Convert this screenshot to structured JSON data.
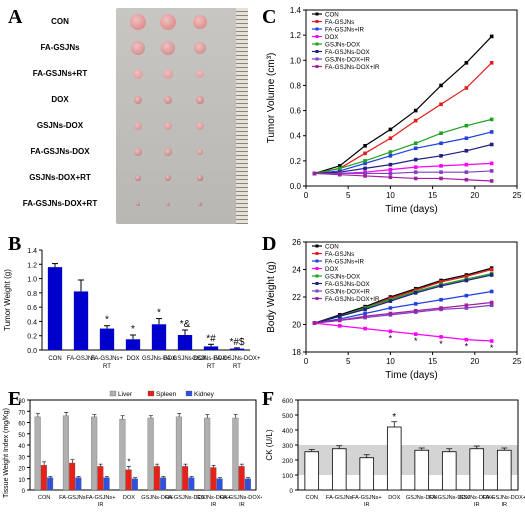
{
  "panel_letters": {
    "a": "A",
    "b": "B",
    "c": "C",
    "d": "D",
    "e": "E",
    "f": "F"
  },
  "photo": {
    "rows": [
      "CON",
      "FA-GSJNs",
      "FA-GSJNs+RT",
      "DOX",
      "GSJNs-DOX",
      "FA-GSJNs-DOX",
      "GSJNs-DOX+RT",
      "FA-GSJNs-DOX+RT"
    ],
    "tumor_colors": [
      "#d97a7a",
      "#c98080",
      "#d89090",
      "#b87070",
      "#c48888",
      "#b87878",
      "#a06868",
      "#906060"
    ],
    "tumor_sizes": [
      1.0,
      0.85,
      0.6,
      0.5,
      0.55,
      0.45,
      0.35,
      0.25
    ]
  },
  "chart_data": [
    {
      "id": "B",
      "type": "bar",
      "ylabel": "Tumor Weight (g)",
      "categories": [
        "CON",
        "FA-GSJNs",
        "FA-GSJNs+RT",
        "DOX",
        "GSJNs-DOX",
        "FA-GSJNs-DOX",
        "GSJNs-DOX+RT",
        "FA-GSJNs-DOX+RT"
      ],
      "values": [
        1.16,
        0.82,
        0.3,
        0.15,
        0.36,
        0.21,
        0.05,
        0.02
      ],
      "errors": [
        0.05,
        0.16,
        0.04,
        0.06,
        0.08,
        0.07,
        0.03,
        0.01
      ],
      "annotations": [
        "",
        "",
        "*",
        "*",
        "*",
        "*&",
        "*#",
        "*#$"
      ],
      "ylim": [
        0.0,
        1.4
      ],
      "yticks": [
        "0.0",
        "0.2",
        "0.4",
        "0.6",
        "0.8",
        "1.0",
        "1.2",
        "1.4"
      ],
      "color": "#0000cc"
    },
    {
      "id": "C",
      "type": "line",
      "xlabel": "Time (days)",
      "ylabel": "Tumor Volume (cm³)",
      "x": [
        1,
        4,
        7,
        10,
        13,
        16,
        19,
        22
      ],
      "xlim": [
        0,
        25
      ],
      "xticks": [
        "0",
        "5",
        "10",
        "15",
        "20",
        "25"
      ],
      "ylim": [
        0,
        1.4
      ],
      "yticks": [
        "0.0",
        "0.2",
        "0.4",
        "0.6",
        "0.8",
        "1.0",
        "1.2",
        "1.4"
      ],
      "legend_position": "top-left",
      "series": [
        {
          "name": "CON",
          "color": "#000000",
          "values": [
            0.1,
            0.16,
            0.32,
            0.45,
            0.6,
            0.8,
            0.98,
            1.19
          ]
        },
        {
          "name": "FA-GSJNs",
          "color": "#e41a1c",
          "values": [
            0.1,
            0.14,
            0.26,
            0.38,
            0.52,
            0.65,
            0.78,
            0.98
          ]
        },
        {
          "name": "FA-GSJNs+IR",
          "color": "#2040e0",
          "values": [
            0.1,
            0.12,
            0.18,
            0.24,
            0.3,
            0.34,
            0.38,
            0.43
          ]
        },
        {
          "name": "DOX",
          "color": "#ff00ff",
          "values": [
            0.1,
            0.1,
            0.11,
            0.13,
            0.15,
            0.16,
            0.17,
            0.18
          ]
        },
        {
          "name": "GSJNs-DOX",
          "color": "#20a020",
          "values": [
            0.1,
            0.14,
            0.2,
            0.27,
            0.34,
            0.42,
            0.48,
            0.53
          ]
        },
        {
          "name": "FA-GSJNs-DOX",
          "color": "#202080",
          "values": [
            0.1,
            0.11,
            0.14,
            0.17,
            0.21,
            0.24,
            0.28,
            0.33
          ]
        },
        {
          "name": "GSJNs-DOX+IR",
          "color": "#8040c0",
          "values": [
            0.1,
            0.1,
            0.1,
            0.1,
            0.11,
            0.11,
            0.11,
            0.12
          ]
        },
        {
          "name": "FA-GSJNs-DOX+IR",
          "color": "#a020a0",
          "values": [
            0.1,
            0.09,
            0.08,
            0.07,
            0.06,
            0.06,
            0.05,
            0.04
          ]
        }
      ]
    },
    {
      "id": "D",
      "type": "line",
      "xlabel": "Time (days)",
      "ylabel": "Body Weight (g)",
      "x": [
        1,
        4,
        7,
        10,
        13,
        16,
        19,
        22
      ],
      "xlim": [
        0,
        25
      ],
      "xticks": [
        "0",
        "5",
        "10",
        "15",
        "20",
        "25"
      ],
      "ylim": [
        18,
        26
      ],
      "yticks": [
        "18",
        "20",
        "22",
        "24",
        "26"
      ],
      "legend_position": "top-left",
      "marker_annotation": "*",
      "annotated_series": "DOX",
      "annotated_points": [
        3,
        4,
        5,
        6,
        7
      ],
      "series": [
        {
          "name": "CON",
          "color": "#000000",
          "values": [
            20.1,
            20.7,
            21.3,
            22.0,
            22.6,
            23.2,
            23.6,
            24.1
          ]
        },
        {
          "name": "FA-GSJNs",
          "color": "#e41a1c",
          "values": [
            20.1,
            20.6,
            21.2,
            21.9,
            22.5,
            23.1,
            23.5,
            24.0
          ]
        },
        {
          "name": "FA-GSJNs+IR",
          "color": "#2040e0",
          "values": [
            20.1,
            20.4,
            20.8,
            21.2,
            21.5,
            21.8,
            22.1,
            22.4
          ]
        },
        {
          "name": "DOX",
          "color": "#ff00ff",
          "values": [
            20.1,
            19.9,
            19.7,
            19.5,
            19.3,
            19.1,
            18.9,
            18.8
          ]
        },
        {
          "name": "GSJNs-DOX",
          "color": "#20a020",
          "values": [
            20.1,
            20.6,
            21.2,
            21.8,
            22.4,
            22.9,
            23.3,
            23.7
          ]
        },
        {
          "name": "FA-GSJNs-DOX",
          "color": "#202080",
          "values": [
            20.1,
            20.6,
            21.1,
            21.7,
            22.3,
            22.8,
            23.2,
            23.6
          ]
        },
        {
          "name": "GSJNs-DOX+IR",
          "color": "#8040c0",
          "values": [
            20.1,
            20.3,
            20.5,
            20.7,
            20.9,
            21.1,
            21.2,
            21.4
          ]
        },
        {
          "name": "FA-GSJNs-DOX+IR",
          "color": "#a020a0",
          "values": [
            20.1,
            20.3,
            20.6,
            20.8,
            21.0,
            21.2,
            21.4,
            21.6
          ]
        }
      ]
    },
    {
      "id": "E",
      "type": "bar",
      "ylabel": "Tissue Weight Index (mg/Kg)",
      "categories": [
        "CON",
        "FA-GSJNs",
        "FA-GSJNs+IR",
        "DOX",
        "GSJNs-DOX",
        "FA-GSJNs-DOX",
        "GSJNs-DOX+IR",
        "FA-GSJNs-DOX+IR"
      ],
      "ylim": [
        0,
        80
      ],
      "yticks": [
        "0",
        "10",
        "20",
        "30",
        "40",
        "50",
        "60",
        "70",
        "80"
      ],
      "legend_position": "top",
      "annotations": [
        "",
        "",
        "",
        "*",
        "",
        "",
        "",
        ""
      ],
      "series": [
        {
          "name": "Liver",
          "color": "#b0b0b0",
          "values": [
            65,
            66,
            65,
            63,
            64,
            65,
            64,
            64
          ],
          "errors": [
            3,
            3,
            2,
            3,
            2,
            3,
            3,
            3
          ]
        },
        {
          "name": "Spleen",
          "color": "#e8201a",
          "values": [
            22,
            24,
            21,
            18,
            21,
            21,
            20,
            21
          ],
          "errors": [
            3,
            3,
            2,
            3,
            2,
            2,
            2,
            2
          ]
        },
        {
          "name": "Kidney",
          "color": "#3050e0",
          "values": [
            11,
            11,
            11,
            10,
            11,
            11,
            10,
            10
          ],
          "errors": [
            1,
            1,
            1,
            1,
            1,
            1,
            1,
            1
          ]
        }
      ]
    },
    {
      "id": "F",
      "type": "bar",
      "ylabel": "CK (U/L)",
      "categories": [
        "CON",
        "FA-GSJNs",
        "FA-GSJNs+IR",
        "DOX",
        "GSJNs-DOX",
        "FA-GSJNs-DOX",
        "GSJNs-DOX+IR",
        "FA-GSJNs-DOX+IR"
      ],
      "values": [
        255,
        275,
        215,
        420,
        265,
        255,
        275,
        265
      ],
      "errors": [
        15,
        20,
        20,
        35,
        15,
        20,
        18,
        15
      ],
      "annotations": [
        "",
        "",
        "",
        "*",
        "",
        "",
        "",
        ""
      ],
      "normal_band": [
        100,
        300
      ],
      "ylim": [
        0,
        600
      ],
      "yticks": [
        "0",
        "100",
        "200",
        "300",
        "400",
        "500",
        "600"
      ],
      "color": "#ffffff"
    }
  ]
}
